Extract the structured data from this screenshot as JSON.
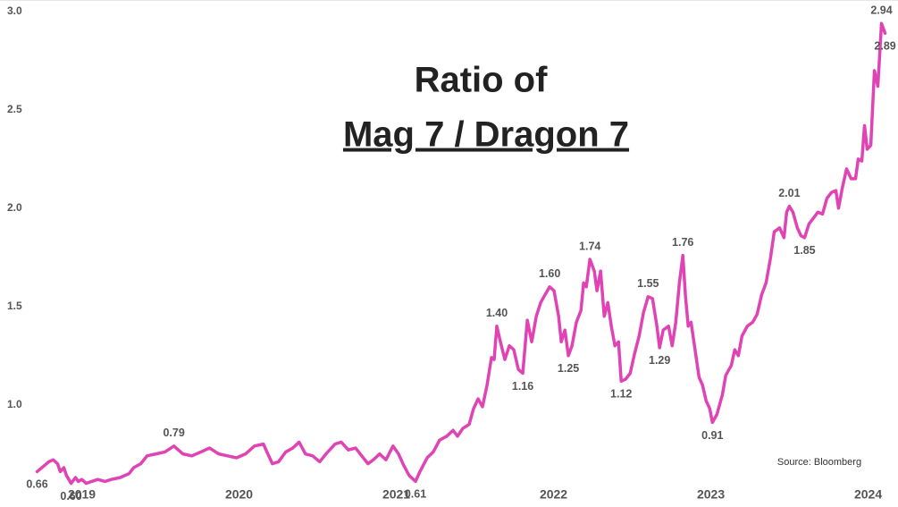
{
  "chart_data": {
    "type": "line",
    "title": "Ratio of",
    "subtitle": "Mag 7 / Dragon 7",
    "source": "Source: Bloomberg",
    "xlim": [
      2018.48,
      2024.19
    ],
    "xticks": [
      2019,
      2020,
      2021,
      2022,
      2023,
      2024
    ],
    "ylim": [
      0.58,
      3.0
    ],
    "yticks": [
      {
        "value": 1,
        "label": "1.0"
      },
      {
        "value": 1.5,
        "label": "1.5"
      },
      {
        "value": 2,
        "label": "2.0"
      },
      {
        "value": 2.5,
        "label": "2.5"
      },
      {
        "value": 3,
        "label": "3.0"
      }
    ],
    "grid": false,
    "x": [
      2018.716,
      2018.761,
      2018.79,
      2018.818,
      2018.846,
      2018.863,
      2018.886,
      2018.903,
      2018.932,
      2018.96,
      2018.977,
      2019.0,
      2019.028,
      2019.063,
      2019.102,
      2019.148,
      2019.188,
      2019.245,
      2019.301,
      2019.33,
      2019.375,
      2019.415,
      2019.472,
      2019.529,
      2019.586,
      2019.643,
      2019.7,
      2019.757,
      2019.813,
      2019.87,
      2019.927,
      2019.984,
      2020.041,
      2020.098,
      2020.155,
      2020.183,
      2020.212,
      2020.251,
      2020.297,
      2020.342,
      2020.382,
      2020.422,
      2020.468,
      2020.513,
      2020.553,
      2020.61,
      2020.65,
      2020.695,
      2020.741,
      2020.78,
      2020.82,
      2020.854,
      2020.894,
      2020.934,
      2020.979,
      2021.014,
      2021.048,
      2021.082,
      2021.122,
      2021.15,
      2021.196,
      2021.235,
      2021.275,
      2021.321,
      2021.361,
      2021.389,
      2021.423,
      2021.463,
      2021.491,
      2021.52,
      2021.548,
      2021.577,
      2021.605,
      2021.622,
      2021.639,
      2021.662,
      2021.69,
      2021.719,
      2021.747,
      2021.776,
      2021.804,
      2021.833,
      2021.861,
      2021.89,
      2021.918,
      2021.946,
      2021.975,
      2022.003,
      2022.032,
      2022.049,
      2022.072,
      2022.094,
      2022.117,
      2022.145,
      2022.174,
      2022.191,
      2022.208,
      2022.231,
      2022.259,
      2022.276,
      2022.299,
      2022.322,
      2022.345,
      2022.367,
      2022.39,
      2022.413,
      2022.43,
      2022.458,
      2022.487,
      2022.515,
      2022.544,
      2022.572,
      2022.601,
      2022.629,
      2022.657,
      2022.674,
      2022.697,
      2022.731,
      2022.754,
      2022.777,
      2022.8,
      2022.822,
      2022.839,
      2022.856,
      2022.874,
      2022.896,
      2022.925,
      2022.947,
      2022.97,
      2022.993,
      2023.01,
      2023.038,
      2023.073,
      2023.095,
      2023.13,
      2023.152,
      2023.175,
      2023.198,
      2023.232,
      2023.266,
      2023.294,
      2023.323,
      2023.351,
      2023.38,
      2023.403,
      2023.437,
      2023.465,
      2023.482,
      2023.499,
      2023.522,
      2023.55,
      2023.573,
      2023.596,
      2023.624,
      2023.653,
      2023.681,
      2023.71,
      2023.738,
      2023.767,
      2023.795,
      2023.812,
      2023.835,
      2023.863,
      2023.892,
      2023.92,
      2023.937,
      2023.96,
      2023.977,
      2023.994,
      2024.017,
      2024.04,
      2024.062,
      2024.085,
      2024.108
    ],
    "series": [
      {
        "color": "#e044b4",
        "values": [
          0.66,
          0.69,
          0.71,
          0.72,
          0.7,
          0.66,
          0.68,
          0.64,
          0.6,
          0.63,
          0.61,
          0.62,
          0.6,
          0.61,
          0.62,
          0.61,
          0.62,
          0.63,
          0.65,
          0.68,
          0.7,
          0.74,
          0.75,
          0.76,
          0.79,
          0.75,
          0.74,
          0.76,
          0.78,
          0.75,
          0.74,
          0.73,
          0.75,
          0.79,
          0.8,
          0.75,
          0.7,
          0.71,
          0.76,
          0.78,
          0.81,
          0.75,
          0.74,
          0.71,
          0.75,
          0.8,
          0.81,
          0.77,
          0.78,
          0.74,
          0.7,
          0.72,
          0.75,
          0.72,
          0.79,
          0.75,
          0.69,
          0.64,
          0.61,
          0.66,
          0.73,
          0.76,
          0.82,
          0.84,
          0.87,
          0.84,
          0.88,
          0.9,
          0.98,
          1.03,
          0.99,
          1.1,
          1.24,
          1.23,
          1.4,
          1.32,
          1.23,
          1.3,
          1.28,
          1.18,
          1.16,
          1.43,
          1.32,
          1.45,
          1.52,
          1.56,
          1.6,
          1.58,
          1.45,
          1.32,
          1.38,
          1.25,
          1.3,
          1.42,
          1.48,
          1.62,
          1.6,
          1.74,
          1.68,
          1.58,
          1.68,
          1.45,
          1.52,
          1.4,
          1.3,
          1.32,
          1.12,
          1.13,
          1.16,
          1.26,
          1.35,
          1.47,
          1.55,
          1.54,
          1.4,
          1.29,
          1.38,
          1.4,
          1.3,
          1.42,
          1.62,
          1.76,
          1.55,
          1.4,
          1.42,
          1.3,
          1.14,
          1.1,
          1.02,
          0.98,
          0.91,
          0.95,
          1.05,
          1.15,
          1.2,
          1.28,
          1.25,
          1.35,
          1.4,
          1.42,
          1.46,
          1.56,
          1.62,
          1.75,
          1.88,
          1.9,
          1.85,
          1.98,
          2.01,
          1.98,
          1.9,
          1.86,
          1.85,
          1.92,
          1.95,
          1.98,
          1.97,
          2.05,
          2.08,
          2.09,
          2.0,
          2.1,
          2.2,
          2.15,
          2.15,
          2.25,
          2.24,
          2.42,
          2.3,
          2.32,
          2.7,
          2.62,
          2.94,
          2.89
        ],
        "value_labels": [
          "0.66",
          null,
          null,
          null,
          null,
          null,
          null,
          null,
          "0.60",
          null,
          null,
          null,
          null,
          null,
          null,
          null,
          null,
          null,
          null,
          null,
          null,
          null,
          null,
          null,
          "0.79",
          null,
          null,
          null,
          null,
          null,
          null,
          null,
          null,
          null,
          null,
          null,
          null,
          null,
          null,
          null,
          null,
          null,
          null,
          null,
          null,
          null,
          null,
          null,
          null,
          null,
          null,
          null,
          null,
          null,
          null,
          null,
          null,
          null,
          "0.61",
          null,
          null,
          null,
          null,
          null,
          null,
          null,
          null,
          null,
          null,
          null,
          null,
          null,
          null,
          null,
          "1.40",
          null,
          null,
          null,
          null,
          null,
          "1.16",
          null,
          null,
          null,
          null,
          null,
          "1.60",
          null,
          null,
          null,
          null,
          "1.25",
          null,
          null,
          null,
          null,
          null,
          "1.74",
          null,
          null,
          null,
          null,
          null,
          null,
          null,
          null,
          "1.12",
          null,
          null,
          null,
          null,
          null,
          "1.55",
          null,
          null,
          "1.29",
          null,
          null,
          null,
          null,
          null,
          "1.76",
          null,
          null,
          null,
          null,
          null,
          null,
          null,
          null,
          "0.91",
          null,
          null,
          null,
          null,
          null,
          null,
          null,
          null,
          null,
          null,
          null,
          null,
          null,
          null,
          null,
          null,
          null,
          "2.01",
          null,
          null,
          null,
          "1.85",
          null,
          null,
          null,
          null,
          null,
          null,
          null,
          null,
          null,
          null,
          null,
          null,
          null,
          null,
          null,
          null,
          null,
          null,
          null,
          "2.94",
          "2.89"
        ]
      }
    ]
  }
}
